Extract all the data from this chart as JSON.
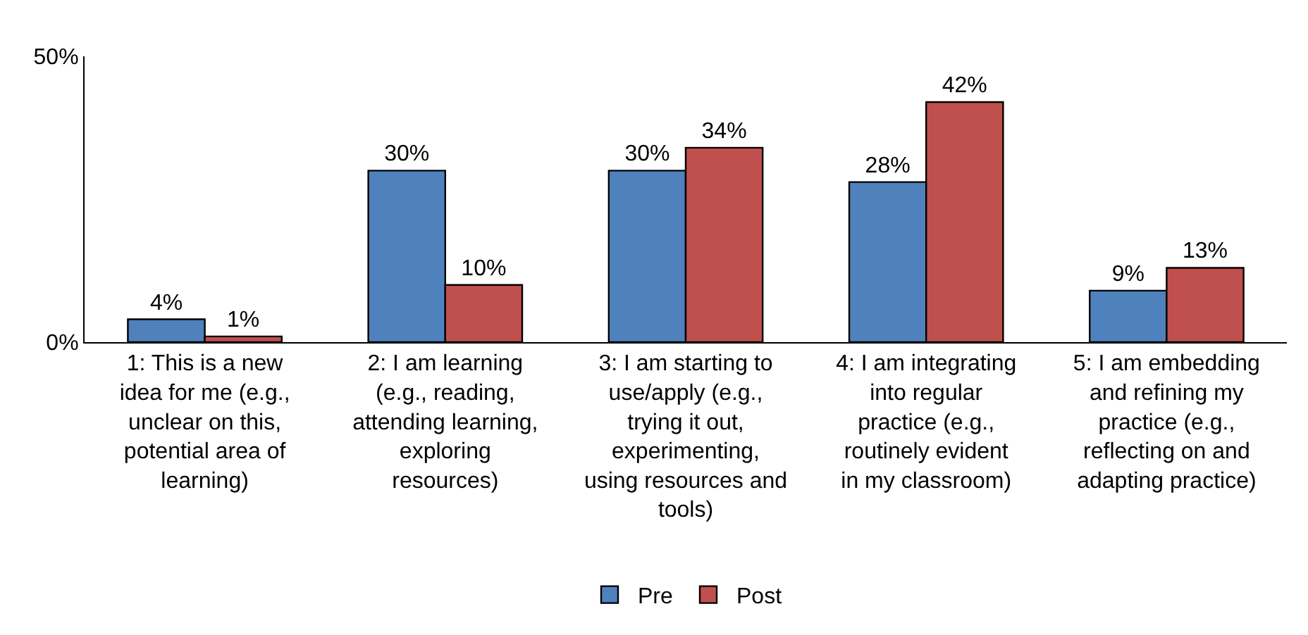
{
  "chart_data": {
    "type": "bar",
    "categories": [
      "1: This is a new idea for me (e.g., unclear on this, potential area of learning)",
      "2: I am learning (e.g., reading, attending learning, exploring resources)",
      "3: I am starting to use/apply (e.g., trying it out, experimenting, using resources and tools)",
      "4: I am integrating into regular practice (e.g., routinely evident in my classroom)",
      "5: I am embedding and refining my practice (e.g., reflecting on and adapting practice)"
    ],
    "series": [
      {
        "name": "Pre",
        "color": "#4f81bd",
        "values": [
          4,
          30,
          30,
          28,
          9
        ],
        "value_labels": [
          "4%",
          "30%",
          "30%",
          "28%",
          "9%"
        ]
      },
      {
        "name": "Post",
        "color": "#c0504d",
        "values": [
          1,
          10,
          34,
          42,
          13
        ],
        "value_labels": [
          "1%",
          "10%",
          "34%",
          "42%",
          "13%"
        ]
      }
    ],
    "ylim": [
      0,
      50
    ],
    "yticks": [
      {
        "value": 0,
        "label": "0%"
      },
      {
        "value": 50,
        "label": "50%"
      }
    ],
    "legend": "bottom"
  }
}
